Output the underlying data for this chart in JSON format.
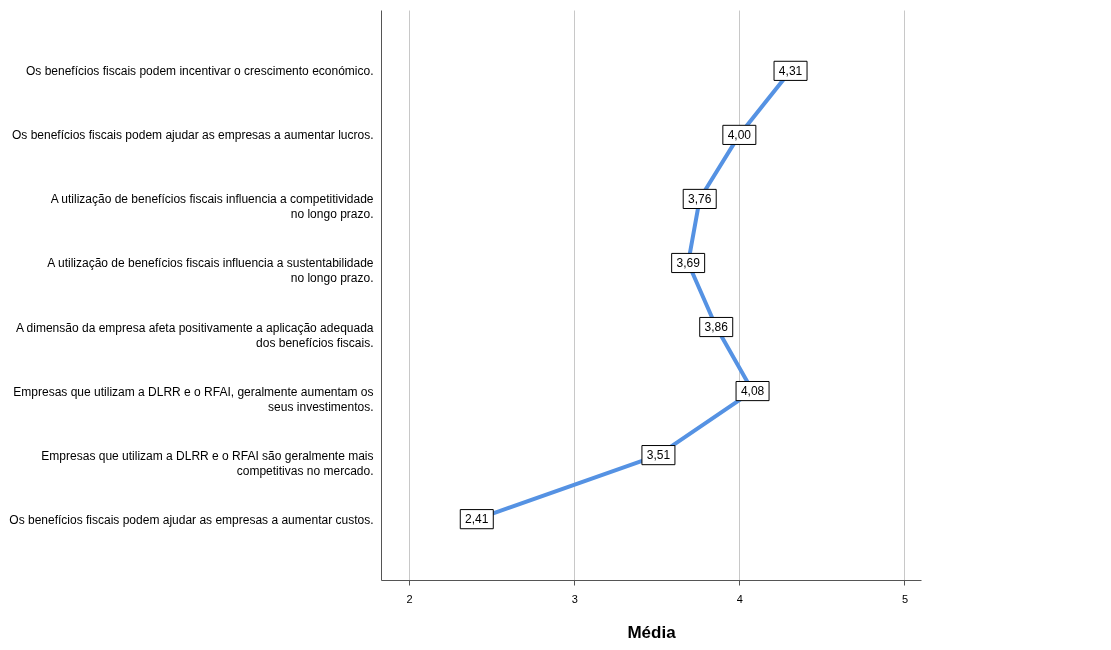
{
  "chart_data": {
    "type": "line",
    "orientation": "horizontal",
    "categories": [
      "Os benefícios fiscais podem incentivar o crescimento económico.",
      "Os benefícios fiscais podem ajudar as empresas a aumentar lucros.",
      "A utilização de benefícios fiscais influencia a competitividade no longo prazo.",
      "A utilização de benefícios fiscais influencia a sustentabilidade no longo prazo.",
      "A dimensão da empresa afeta positivamente a aplicação adequada dos benefícios fiscais.",
      "Empresas que utilizam a DLRR e o RFAI, geralmente  aumentam os seus investimentos.",
      "Empresas que utilizam a DLRR e o RFAI são geralmente mais competitivas no mercado.",
      "Os benefícios fiscais podem ajudar as empresas a aumentar custos."
    ],
    "values": [
      4.31,
      4.0,
      3.76,
      3.69,
      3.86,
      4.08,
      3.51,
      2.41
    ],
    "value_labels": [
      "4,31",
      "4,00",
      "3,76",
      "3,69",
      "3,86",
      "4,08",
      "3,51",
      "2,41"
    ],
    "color": "#5592e3",
    "xlim": [
      1.83,
      5.1
    ],
    "xticks": [
      2,
      3,
      4,
      5
    ],
    "xlabel": "Média",
    "grid": "x",
    "marker": "square"
  }
}
